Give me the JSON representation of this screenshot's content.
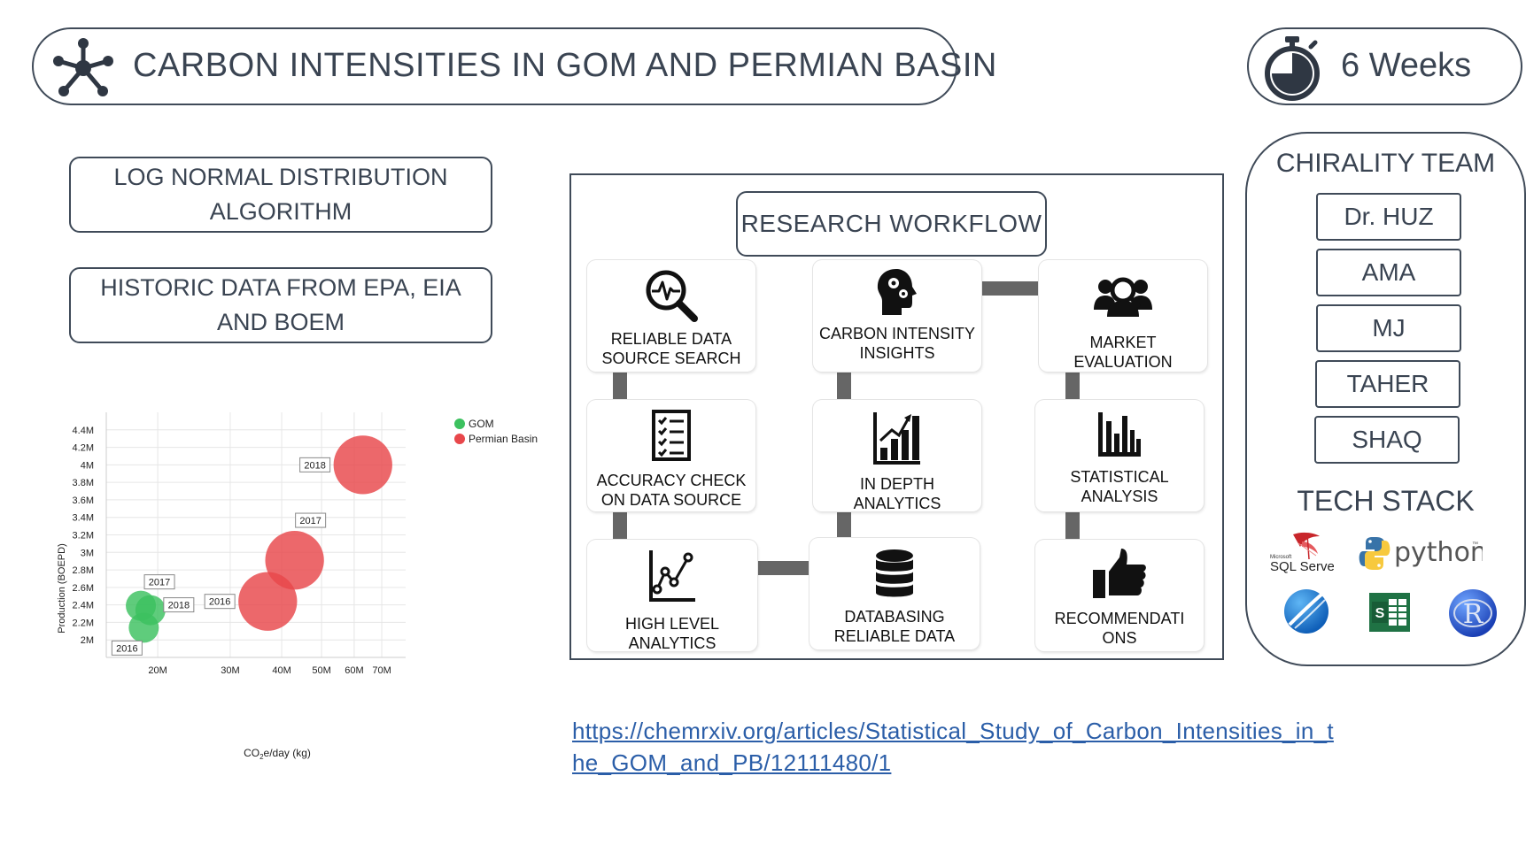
{
  "header": {
    "title": "CARBON INTENSITIES IN GOM AND PERMIAN BASIN",
    "duration": "6 Weeks",
    "title_icon": "network-hub-icon",
    "duration_icon": "stopwatch-icon"
  },
  "left_boxes": [
    {
      "line1": "LOG NORMAL DISTRIBUTION",
      "line2": "ALGORITHM"
    },
    {
      "line1": "HISTORIC DATA FROM EPA, EIA",
      "line2": "AND BOEM"
    }
  ],
  "workflow": {
    "title": "RESEARCH WORKFLOW",
    "steps": [
      {
        "line1": "RELIABLE DATA",
        "line2": "SOURCE SEARCH",
        "icon": "magnifier-pulse-icon"
      },
      {
        "line1": "CARBON INTENSITY",
        "line2": "INSIGHTS",
        "icon": "head-gears-icon"
      },
      {
        "line1": "MARKET EVALUATION",
        "line2": "",
        "icon": "people-group-icon"
      },
      {
        "line1": "ACCURACY CHECK",
        "line2": "ON  DATA SOURCE",
        "icon": "checklist-icon"
      },
      {
        "line1": "IN DEPTH",
        "line2": "ANALYTICS",
        "icon": "bar-growth-icon"
      },
      {
        "line1": "STATISTICAL",
        "line2": "ANALYSIS",
        "icon": "bar-chart-icon"
      },
      {
        "line1": "HIGH LEVEL ANALYTICS",
        "line2": "",
        "icon": "line-chart-icon"
      },
      {
        "line1": "DATABASING",
        "line2": "RELIABLE DATA",
        "icon": "database-icon"
      },
      {
        "line1": "RECOMMENDATI",
        "line2": "ONS",
        "icon": "thumbs-up-icon"
      }
    ]
  },
  "team": {
    "title": "CHIRALITY TEAM",
    "members": [
      "Dr. HUZ",
      "AMA",
      "MJ",
      "TAHER",
      "SHAQ"
    ]
  },
  "tech_stack": {
    "title": "TECH STACK",
    "sql_small": "Microsoft",
    "sql_label": "SQL Server",
    "python_label": "python",
    "python_tm": "™",
    "r_label": "R",
    "items": [
      "sql-server-logo",
      "python-logo",
      "powerbi-logo",
      "excel-logo",
      "r-logo"
    ]
  },
  "link": "https://chemrxiv.org/articles/Statistical_Study_of_Carbon_Intensities_in_the_GOM_and_PB/12111480/1",
  "chart_data": {
    "type": "scatter",
    "title": "",
    "xlabel": "CO₂e/day (kg)",
    "ylabel": "Production (BOEPD)",
    "x_scale": "log",
    "xlim": [
      15000000,
      80000000
    ],
    "ylim": [
      1800000,
      4600000
    ],
    "x_ticks": [
      {
        "v": 20000000,
        "label": "20M"
      },
      {
        "v": 30000000,
        "label": "30M"
      },
      {
        "v": 40000000,
        "label": "40M"
      },
      {
        "v": 50000000,
        "label": "50M"
      },
      {
        "v": 60000000,
        "label": "60M"
      },
      {
        "v": 70000000,
        "label": "70M"
      }
    ],
    "y_ticks": [
      {
        "v": 2000000,
        "label": "2M"
      },
      {
        "v": 2200000,
        "label": "2.2M"
      },
      {
        "v": 2400000,
        "label": "2.4M"
      },
      {
        "v": 2600000,
        "label": "2.6M"
      },
      {
        "v": 2800000,
        "label": "2.8M"
      },
      {
        "v": 3000000,
        "label": "3M"
      },
      {
        "v": 3200000,
        "label": "3.2M"
      },
      {
        "v": 3400000,
        "label": "3.4M"
      },
      {
        "v": 3600000,
        "label": "3.6M"
      },
      {
        "v": 3800000,
        "label": "3.8M"
      },
      {
        "v": 4000000,
        "label": "4M"
      },
      {
        "v": 4200000,
        "label": "4.2M"
      },
      {
        "v": 4400000,
        "label": "4.4M"
      }
    ],
    "grid": true,
    "legend_position": "top-right",
    "series": [
      {
        "name": "GOM",
        "color": "#3cc15f",
        "points": [
          {
            "x": 18500000,
            "y": 2140000,
            "label": "2016",
            "size": 1.0,
            "label_side": "below-left"
          },
          {
            "x": 18200000,
            "y": 2390000,
            "label": "2017",
            "size": 1.0,
            "label_side": "above-right"
          },
          {
            "x": 19200000,
            "y": 2340000,
            "label": "2018",
            "size": 1.0,
            "label_side": "right"
          }
        ]
      },
      {
        "name": "Permian Basin",
        "color": "#e8474b",
        "points": [
          {
            "x": 37000000,
            "y": 2440000,
            "label": "2016",
            "size": 1.95,
            "label_side": "left"
          },
          {
            "x": 43000000,
            "y": 2910000,
            "label": "2017",
            "size": 1.95,
            "label_side": "above"
          },
          {
            "x": 63000000,
            "y": 4000000,
            "label": "2018",
            "size": 1.95,
            "label_side": "left"
          }
        ]
      }
    ]
  }
}
